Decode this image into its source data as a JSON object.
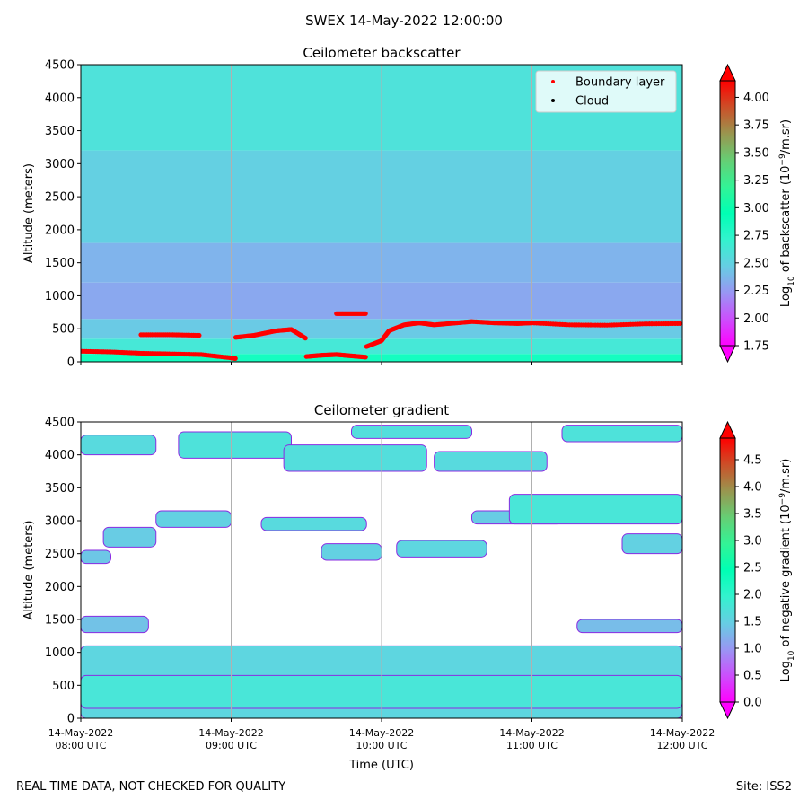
{
  "figure": {
    "suptitle": "SWEX 14-May-2022 12:00:00",
    "footer_left": "REAL TIME DATA, NOT CHECKED FOR QUALITY",
    "footer_right": "Site: ISS2"
  },
  "chart_data": [
    {
      "type": "heatmap",
      "title": "Ceilometer backscatter",
      "xlabel": "",
      "ylabel": "Altitude (meters)",
      "xlim": [
        "2022-05-14T08:00",
        "2022-05-14T12:00"
      ],
      "ylim": [
        0,
        4500
      ],
      "yticks": [
        0,
        500,
        1000,
        1500,
        2000,
        2500,
        3000,
        3500,
        4000,
        4500
      ],
      "xtick_labels": [],
      "grid": "vertical",
      "colormap": "rainbow",
      "colorbar": {
        "label": "Log10 of backscatter (10⁻⁹/m.sr)",
        "label_parts": [
          "Log",
          "10",
          " of backscatter (10",
          "−9",
          "/m.sr)"
        ],
        "range": [
          1.75,
          4.15
        ],
        "ticks": [
          1.75,
          2.0,
          2.25,
          2.5,
          2.75,
          3.0,
          3.25,
          3.5,
          3.75,
          4.0
        ],
        "tick_labels": [
          "1.75",
          "2.00",
          "2.25",
          "2.50",
          "2.75",
          "3.00",
          "3.25",
          "3.50",
          "3.75",
          "4.00"
        ],
        "extend": "both"
      },
      "layers": [
        {
          "alt": [
            0,
            120
          ],
          "value": 2.85
        },
        {
          "alt": [
            120,
            350
          ],
          "value": 2.62
        },
        {
          "alt": [
            350,
            650
          ],
          "value": 2.45
        },
        {
          "alt": [
            650,
            1200
          ],
          "value": 2.3
        },
        {
          "alt": [
            1200,
            1800
          ],
          "value": 2.35
        },
        {
          "alt": [
            1800,
            3200
          ],
          "value": 2.48
        },
        {
          "alt": [
            3200,
            4500
          ],
          "value": 2.58
        }
      ],
      "legend": {
        "placement": "top-right",
        "entries": [
          {
            "label": "Boundary layer",
            "color": "#ff0000"
          },
          {
            "label": "Cloud",
            "color": "#000000"
          }
        ]
      },
      "series": [
        {
          "name": "Boundary layer",
          "color": "#ff0000",
          "segments": [
            {
              "x": [
                8.0,
                8.2,
                8.4,
                8.6,
                8.8,
                9.0,
                9.03
              ],
              "y": [
                160,
                150,
                130,
                120,
                110,
                60,
                50
              ]
            },
            {
              "x": [
                8.4,
                8.6,
                8.8
              ],
              "y": [
                410,
                410,
                400
              ]
            },
            {
              "x": [
                9.03,
                9.15,
                9.3,
                9.4,
                9.5
              ],
              "y": [
                370,
                400,
                470,
                490,
                350
              ]
            },
            {
              "x": [
                9.5,
                9.6,
                9.7,
                9.8,
                9.9
              ],
              "y": [
                80,
                100,
                110,
                90,
                70
              ]
            },
            {
              "x": [
                9.7,
                9.8,
                9.9
              ],
              "y": [
                730,
                730,
                730
              ]
            },
            {
              "x": [
                9.9,
                10.0,
                10.05,
                10.15,
                10.25,
                10.35,
                10.5,
                10.6,
                10.75,
                10.9,
                11.0,
                11.25,
                11.5,
                11.75,
                12.0
              ],
              "y": [
                230,
                320,
                470,
                560,
                590,
                560,
                590,
                610,
                590,
                580,
                590,
                560,
                555,
                575,
                580
              ]
            }
          ]
        },
        {
          "name": "Cloud",
          "color": "#000000",
          "segments": []
        }
      ]
    },
    {
      "type": "heatmap",
      "title": "Ceilometer gradient",
      "xlabel": "Time (UTC)",
      "ylabel": "Altitude (meters)",
      "xlim": [
        "2022-05-14T08:00",
        "2022-05-14T12:00"
      ],
      "ylim": [
        0,
        4500
      ],
      "yticks": [
        0,
        500,
        1000,
        1500,
        2000,
        2500,
        3000,
        3500,
        4000,
        4500
      ],
      "xticks": [
        8,
        9,
        10,
        11,
        12
      ],
      "xtick_labels": [
        [
          "14-May-2022",
          "08:00 UTC"
        ],
        [
          "14-May-2022",
          "09:00 UTC"
        ],
        [
          "14-May-2022",
          "10:00 UTC"
        ],
        [
          "14-May-2022",
          "11:00 UTC"
        ],
        [
          "14-May-2022",
          "12:00 UTC"
        ]
      ],
      "grid": "vertical",
      "colormap": "rainbow",
      "colorbar": {
        "label": "Log10 of negative gradient (10⁻⁹/m.sr)",
        "label_parts": [
          "Log",
          "10",
          " of negative gradient (10",
          "−9",
          "/m.sr)"
        ],
        "range": [
          0.0,
          4.9
        ],
        "ticks": [
          0.0,
          0.5,
          1.0,
          1.5,
          2.0,
          2.5,
          3.0,
          3.5,
          4.0,
          4.5
        ],
        "tick_labels": [
          "0.0",
          "0.5",
          "1.0",
          "1.5",
          "2.0",
          "2.5",
          "3.0",
          "3.5",
          "4.0",
          "4.5"
        ],
        "extend": "both"
      },
      "regions": [
        {
          "x": [
            8.0,
            12.0
          ],
          "alt": [
            0,
            1100
          ],
          "value": 1.55
        },
        {
          "x": [
            8.0,
            12.0
          ],
          "alt": [
            150,
            650
          ],
          "value": 1.75
        },
        {
          "x": [
            8.0,
            8.45
          ],
          "alt": [
            1300,
            1550
          ],
          "value": 1.35
        },
        {
          "x": [
            11.3,
            12.0
          ],
          "alt": [
            1300,
            1500
          ],
          "value": 1.3
        },
        {
          "x": [
            8.0,
            8.2
          ],
          "alt": [
            2350,
            2550
          ],
          "value": 1.4
        },
        {
          "x": [
            8.15,
            8.5
          ],
          "alt": [
            2600,
            2900
          ],
          "value": 1.45
        },
        {
          "x": [
            8.5,
            9.0
          ],
          "alt": [
            2900,
            3150
          ],
          "value": 1.5
        },
        {
          "x": [
            9.2,
            9.9
          ],
          "alt": [
            2850,
            3050
          ],
          "value": 1.6
        },
        {
          "x": [
            9.6,
            10.0
          ],
          "alt": [
            2400,
            2650
          ],
          "value": 1.5
        },
        {
          "x": [
            10.1,
            10.7
          ],
          "alt": [
            2450,
            2700
          ],
          "value": 1.55
        },
        {
          "x": [
            10.6,
            11.2
          ],
          "alt": [
            2950,
            3150
          ],
          "value": 1.45
        },
        {
          "x": [
            10.85,
            12.0
          ],
          "alt": [
            2950,
            3400
          ],
          "value": 1.75
        },
        {
          "x": [
            11.6,
            12.0
          ],
          "alt": [
            2500,
            2800
          ],
          "value": 1.5
        },
        {
          "x": [
            8.0,
            8.5
          ],
          "alt": [
            4000,
            4300
          ],
          "value": 1.6
        },
        {
          "x": [
            8.65,
            9.4
          ],
          "alt": [
            3950,
            4350
          ],
          "value": 1.7
        },
        {
          "x": [
            9.35,
            10.3
          ],
          "alt": [
            3750,
            4150
          ],
          "value": 1.65
        },
        {
          "x": [
            10.35,
            11.1
          ],
          "alt": [
            3750,
            4050
          ],
          "value": 1.6
        },
        {
          "x": [
            11.2,
            12.0
          ],
          "alt": [
            4200,
            4450
          ],
          "value": 1.7
        },
        {
          "x": [
            9.8,
            10.6
          ],
          "alt": [
            4250,
            4450
          ],
          "value": 1.65
        }
      ]
    }
  ]
}
